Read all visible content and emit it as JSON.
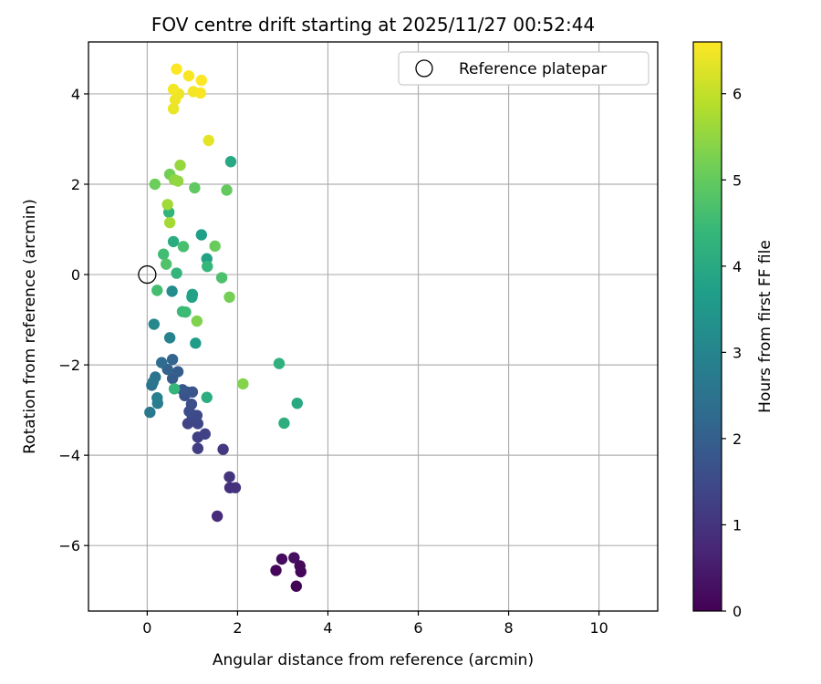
{
  "chart_data": {
    "type": "scatter",
    "title": "FOV centre drift starting at 2025/11/27 00:52:44",
    "xlabel": "Angular distance from reference (arcmin)",
    "ylabel": "Rotation from reference (arcmin)",
    "xlim": [
      -1.3,
      11.3
    ],
    "ylim": [
      -7.45,
      5.15
    ],
    "xticks": [
      0,
      2,
      4,
      6,
      8,
      10
    ],
    "xtick_labels": [
      "0",
      "2",
      "4",
      "6",
      "8",
      "10"
    ],
    "yticks": [
      -6,
      -4,
      -2,
      0,
      2,
      4
    ],
    "ytick_labels": [
      "−6",
      "−4",
      "−2",
      "0",
      "2",
      "4"
    ],
    "grid": true,
    "legend": {
      "location": "top-right",
      "label": "Reference platepar"
    },
    "reference_point": {
      "x": 0,
      "y": 0
    },
    "colorbar": {
      "label": "Hours from first FF file",
      "range": [
        0,
        6.6
      ],
      "ticks": [
        0,
        1,
        2,
        3,
        4,
        5,
        6
      ],
      "tick_labels": [
        "0",
        "1",
        "2",
        "3",
        "4",
        "5",
        "6"
      ],
      "colormap": "viridis"
    },
    "points": [
      {
        "x": 3.3,
        "y": -6.9,
        "c": 0.05
      },
      {
        "x": 2.85,
        "y": -6.55,
        "c": 0.1
      },
      {
        "x": 3.4,
        "y": -6.58,
        "c": 0.1
      },
      {
        "x": 3.38,
        "y": -6.45,
        "c": 0.15
      },
      {
        "x": 2.98,
        "y": -6.3,
        "c": 0.2
      },
      {
        "x": 3.25,
        "y": -6.27,
        "c": 0.25
      },
      {
        "x": 1.55,
        "y": -5.35,
        "c": 0.8
      },
      {
        "x": 1.83,
        "y": -4.72,
        "c": 0.9
      },
      {
        "x": 1.95,
        "y": -4.72,
        "c": 0.95
      },
      {
        "x": 1.82,
        "y": -4.48,
        "c": 1.0
      },
      {
        "x": 1.68,
        "y": -3.87,
        "c": 1.1
      },
      {
        "x": 1.12,
        "y": -3.85,
        "c": 1.2
      },
      {
        "x": 1.12,
        "y": -3.6,
        "c": 1.25
      },
      {
        "x": 1.28,
        "y": -3.53,
        "c": 1.3
      },
      {
        "x": 0.9,
        "y": -3.3,
        "c": 1.35
      },
      {
        "x": 1.12,
        "y": -3.3,
        "c": 1.4
      },
      {
        "x": 1.0,
        "y": -3.18,
        "c": 1.45
      },
      {
        "x": 1.1,
        "y": -3.12,
        "c": 1.5
      },
      {
        "x": 0.93,
        "y": -3.03,
        "c": 1.55
      },
      {
        "x": 0.98,
        "y": -2.87,
        "c": 1.6
      },
      {
        "x": 0.83,
        "y": -2.68,
        "c": 1.65
      },
      {
        "x": 0.88,
        "y": -2.6,
        "c": 1.7
      },
      {
        "x": 1.0,
        "y": -2.6,
        "c": 1.75
      },
      {
        "x": 0.78,
        "y": -2.55,
        "c": 1.8
      },
      {
        "x": 0.56,
        "y": -2.3,
        "c": 1.9
      },
      {
        "x": 0.68,
        "y": -2.15,
        "c": 1.95
      },
      {
        "x": 0.45,
        "y": -2.1,
        "c": 2.05
      },
      {
        "x": 0.56,
        "y": -1.88,
        "c": 2.15
      },
      {
        "x": 0.32,
        "y": -1.95,
        "c": 2.3
      },
      {
        "x": 0.1,
        "y": -2.45,
        "c": 2.45
      },
      {
        "x": 0.18,
        "y": -2.27,
        "c": 2.55
      },
      {
        "x": 0.13,
        "y": -2.38,
        "c": 2.6
      },
      {
        "x": 0.06,
        "y": -3.05,
        "c": 2.65
      },
      {
        "x": 0.23,
        "y": -2.85,
        "c": 2.75
      },
      {
        "x": 0.22,
        "y": -2.73,
        "c": 2.85
      },
      {
        "x": 0.5,
        "y": -1.4,
        "c": 2.95
      },
      {
        "x": 0.15,
        "y": -1.1,
        "c": 3.1
      },
      {
        "x": 0.55,
        "y": -0.37,
        "c": 3.2
      },
      {
        "x": 1.07,
        "y": -1.52,
        "c": 3.65
      },
      {
        "x": 1.2,
        "y": 0.88,
        "c": 3.7
      },
      {
        "x": 1.32,
        "y": 0.35,
        "c": 3.75
      },
      {
        "x": 1.0,
        "y": -0.44,
        "c": 3.75
      },
      {
        "x": 0.99,
        "y": -0.5,
        "c": 3.8
      },
      {
        "x": 1.85,
        "y": 2.5,
        "c": 3.95
      },
      {
        "x": 3.32,
        "y": -2.85,
        "c": 4.0
      },
      {
        "x": 0.58,
        "y": 0.73,
        "c": 4.05
      },
      {
        "x": 1.32,
        "y": -2.72,
        "c": 4.1
      },
      {
        "x": 3.03,
        "y": -3.29,
        "c": 4.15
      },
      {
        "x": 2.92,
        "y": -1.97,
        "c": 4.2
      },
      {
        "x": 0.48,
        "y": 1.38,
        "c": 4.3
      },
      {
        "x": 0.65,
        "y": 0.03,
        "c": 4.3
      },
      {
        "x": 0.6,
        "y": -2.53,
        "c": 4.35
      },
      {
        "x": 1.33,
        "y": 0.18,
        "c": 4.4
      },
      {
        "x": 0.78,
        "y": -0.82,
        "c": 4.45
      },
      {
        "x": 0.85,
        "y": -0.83,
        "c": 4.5
      },
      {
        "x": 0.36,
        "y": 0.45,
        "c": 4.55
      },
      {
        "x": 0.22,
        "y": -0.35,
        "c": 4.6
      },
      {
        "x": 0.8,
        "y": 0.62,
        "c": 4.65
      },
      {
        "x": 1.65,
        "y": -0.07,
        "c": 4.7
      },
      {
        "x": 0.42,
        "y": 0.23,
        "c": 4.75
      },
      {
        "x": 1.05,
        "y": 1.92,
        "c": 4.95
      },
      {
        "x": 1.76,
        "y": 1.87,
        "c": 5.0
      },
      {
        "x": 1.5,
        "y": 0.63,
        "c": 5.05
      },
      {
        "x": 0.17,
        "y": 2.0,
        "c": 5.1
      },
      {
        "x": 0.5,
        "y": 2.22,
        "c": 5.15
      },
      {
        "x": 1.82,
        "y": -0.5,
        "c": 5.2
      },
      {
        "x": 1.1,
        "y": -1.03,
        "c": 5.3
      },
      {
        "x": 2.12,
        "y": -2.42,
        "c": 5.35
      },
      {
        "x": 0.6,
        "y": 2.1,
        "c": 5.45
      },
      {
        "x": 0.68,
        "y": 2.07,
        "c": 5.5
      },
      {
        "x": 0.73,
        "y": 2.42,
        "c": 5.55
      },
      {
        "x": 0.45,
        "y": 1.55,
        "c": 5.65
      },
      {
        "x": 0.5,
        "y": 1.15,
        "c": 5.7
      },
      {
        "x": 1.36,
        "y": 2.97,
        "c": 6.35
      },
      {
        "x": 0.58,
        "y": 3.67,
        "c": 6.4
      },
      {
        "x": 0.62,
        "y": 3.87,
        "c": 6.45
      },
      {
        "x": 0.7,
        "y": 4.0,
        "c": 6.45
      },
      {
        "x": 0.58,
        "y": 4.1,
        "c": 6.5
      },
      {
        "x": 1.02,
        "y": 4.05,
        "c": 6.5
      },
      {
        "x": 1.18,
        "y": 4.02,
        "c": 6.55
      },
      {
        "x": 0.92,
        "y": 4.4,
        "c": 6.55
      },
      {
        "x": 1.2,
        "y": 4.3,
        "c": 6.6
      },
      {
        "x": 0.65,
        "y": 4.55,
        "c": 6.6
      }
    ]
  }
}
